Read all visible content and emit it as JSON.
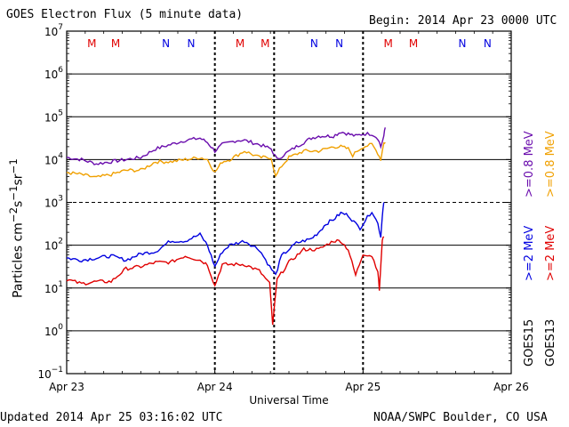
{
  "header": {
    "title": "GOES Electron Flux (5 minute data)",
    "begin": "Begin: 2014 Apr 23 0000 UTC"
  },
  "footer": {
    "updated": "Updated 2014 Apr 25 03:16:02 UTC",
    "credit": "NOAA/SWPC Boulder, CO USA"
  },
  "legend": {
    "goes15_08": ">=0.8 MeV",
    "goes13_08": ">=0.8 MeV",
    "goes15_2": ">=2 MeV",
    "goes13_2": ">=2 MeV",
    "sat15": "GOES15",
    "sat13": "GOES13",
    "mev": "MeV"
  },
  "colors": {
    "goes15_08": "#6a0dad",
    "goes13_08": "#f0a000",
    "goes15_2": "#0000e0",
    "goes13_2": "#e00000",
    "mark_M": "#e00000",
    "mark_N": "#0000e0"
  },
  "chart_data": {
    "type": "line",
    "title": "GOES Electron Flux (5 minute data)",
    "xlabel": "Universal Time",
    "ylabel": "Particles cm-2 s-1 sr-1",
    "y_scale": "log",
    "ylim_exp": [
      -1,
      7
    ],
    "y_tick_exponents": [
      7,
      6,
      5,
      4,
      3,
      2,
      1,
      0,
      -1
    ],
    "y_tick_base": "10",
    "threshold_exponent": 3,
    "xlim_days": [
      0,
      3
    ],
    "x_ticks": [
      {
        "day": 0,
        "label": "Apr 23"
      },
      {
        "day": 1,
        "label": "Apr 24"
      },
      {
        "day": 2,
        "label": "Apr 25"
      },
      {
        "day": 3,
        "label": "Apr 26"
      }
    ],
    "midnight_markers_days": [
      1,
      1.4,
      2
    ],
    "mn_markers": [
      {
        "day": 0.17,
        "label": "M",
        "sat": "13"
      },
      {
        "day": 0.33,
        "label": "M",
        "sat": "15"
      },
      {
        "day": 0.67,
        "label": "N",
        "sat": "13"
      },
      {
        "day": 0.84,
        "label": "N",
        "sat": "15"
      },
      {
        "day": 1.17,
        "label": "M",
        "sat": "13"
      },
      {
        "day": 1.34,
        "label": "M",
        "sat": "15"
      },
      {
        "day": 1.67,
        "label": "N",
        "sat": "13"
      },
      {
        "day": 1.84,
        "label": "N",
        "sat": "15"
      },
      {
        "day": 2.17,
        "label": "M",
        "sat": "13"
      },
      {
        "day": 2.34,
        "label": "M",
        "sat": "15"
      },
      {
        "day": 2.67,
        "label": "N",
        "sat": "13"
      },
      {
        "day": 2.84,
        "label": "N",
        "sat": "15"
      }
    ],
    "series": [
      {
        "name": "GOES15 >=0.8 MeV",
        "color_key": "goes15_08",
        "points": [
          [
            0,
            4.05
          ],
          [
            0.1,
            4.0
          ],
          [
            0.2,
            3.9
          ],
          [
            0.3,
            3.95
          ],
          [
            0.4,
            4.0
          ],
          [
            0.5,
            4.05
          ],
          [
            0.6,
            4.25
          ],
          [
            0.7,
            4.35
          ],
          [
            0.8,
            4.45
          ],
          [
            0.9,
            4.5
          ],
          [
            0.95,
            4.4
          ],
          [
            1.0,
            4.2
          ],
          [
            1.05,
            4.35
          ],
          [
            1.15,
            4.45
          ],
          [
            1.2,
            4.45
          ],
          [
            1.3,
            4.35
          ],
          [
            1.38,
            4.25
          ],
          [
            1.42,
            4.0
          ],
          [
            1.48,
            4.15
          ],
          [
            1.55,
            4.3
          ],
          [
            1.6,
            4.4
          ],
          [
            1.65,
            4.5
          ],
          [
            1.7,
            4.55
          ],
          [
            1.75,
            4.55
          ],
          [
            1.8,
            4.55
          ],
          [
            1.85,
            4.65
          ],
          [
            1.9,
            4.6
          ],
          [
            1.95,
            4.55
          ],
          [
            2.0,
            4.6
          ],
          [
            2.06,
            4.6
          ],
          [
            2.1,
            4.5
          ],
          [
            2.12,
            4.3
          ],
          [
            2.14,
            4.55
          ],
          [
            2.15,
            4.75
          ]
        ]
      },
      {
        "name": "GOES13 >=0.8 MeV",
        "color_key": "goes13_08",
        "points": [
          [
            0,
            3.7
          ],
          [
            0.1,
            3.65
          ],
          [
            0.2,
            3.58
          ],
          [
            0.3,
            3.65
          ],
          [
            0.4,
            3.75
          ],
          [
            0.5,
            3.75
          ],
          [
            0.6,
            3.95
          ],
          [
            0.7,
            3.95
          ],
          [
            0.8,
            4.0
          ],
          [
            0.9,
            4.05
          ],
          [
            0.95,
            4.0
          ],
          [
            1.0,
            3.7
          ],
          [
            1.05,
            3.95
          ],
          [
            1.1,
            4.0
          ],
          [
            1.2,
            4.2
          ],
          [
            1.3,
            4.05
          ],
          [
            1.38,
            4.05
          ],
          [
            1.41,
            3.6
          ],
          [
            1.45,
            3.85
          ],
          [
            1.5,
            4.05
          ],
          [
            1.6,
            4.2
          ],
          [
            1.7,
            4.2
          ],
          [
            1.8,
            4.3
          ],
          [
            1.85,
            4.3
          ],
          [
            1.9,
            4.25
          ],
          [
            1.93,
            4.1
          ],
          [
            1.96,
            4.2
          ],
          [
            2.0,
            4.3
          ],
          [
            2.06,
            4.35
          ],
          [
            2.1,
            4.15
          ],
          [
            2.12,
            4.0
          ],
          [
            2.14,
            4.4
          ],
          [
            2.15,
            4.4
          ]
        ]
      },
      {
        "name": "GOES15 >=2 MeV",
        "color_key": "goes15_2",
        "points": [
          [
            0,
            1.7
          ],
          [
            0.1,
            1.65
          ],
          [
            0.2,
            1.7
          ],
          [
            0.3,
            1.75
          ],
          [
            0.4,
            1.65
          ],
          [
            0.5,
            1.8
          ],
          [
            0.6,
            1.85
          ],
          [
            0.7,
            2.1
          ],
          [
            0.8,
            2.1
          ],
          [
            0.9,
            2.25
          ],
          [
            0.95,
            2.0
          ],
          [
            1.0,
            1.5
          ],
          [
            1.05,
            1.85
          ],
          [
            1.1,
            2.0
          ],
          [
            1.2,
            2.1
          ],
          [
            1.3,
            1.9
          ],
          [
            1.37,
            1.5
          ],
          [
            1.41,
            1.3
          ],
          [
            1.45,
            1.75
          ],
          [
            1.55,
            2.05
          ],
          [
            1.65,
            2.15
          ],
          [
            1.7,
            2.3
          ],
          [
            1.75,
            2.5
          ],
          [
            1.8,
            2.6
          ],
          [
            1.85,
            2.75
          ],
          [
            1.9,
            2.7
          ],
          [
            1.95,
            2.5
          ],
          [
            1.98,
            2.4
          ],
          [
            2.0,
            2.5
          ],
          [
            2.06,
            2.8
          ],
          [
            2.1,
            2.5
          ],
          [
            2.12,
            2.2
          ],
          [
            2.13,
            2.7
          ],
          [
            2.14,
            3.0
          ]
        ]
      },
      {
        "name": "GOES13 >=2 MeV",
        "color_key": "goes13_2",
        "points": [
          [
            0,
            1.2
          ],
          [
            0.1,
            1.1
          ],
          [
            0.2,
            1.15
          ],
          [
            0.3,
            1.15
          ],
          [
            0.4,
            1.45
          ],
          [
            0.5,
            1.5
          ],
          [
            0.6,
            1.6
          ],
          [
            0.7,
            1.6
          ],
          [
            0.8,
            1.75
          ],
          [
            0.9,
            1.65
          ],
          [
            0.95,
            1.55
          ],
          [
            1.0,
            1.05
          ],
          [
            1.05,
            1.55
          ],
          [
            1.1,
            1.55
          ],
          [
            1.2,
            1.55
          ],
          [
            1.3,
            1.4
          ],
          [
            1.37,
            1.1
          ],
          [
            1.39,
            0.15
          ],
          [
            1.42,
            1.2
          ],
          [
            1.5,
            1.6
          ],
          [
            1.6,
            1.9
          ],
          [
            1.7,
            1.9
          ],
          [
            1.8,
            2.1
          ],
          [
            1.85,
            2.1
          ],
          [
            1.9,
            1.9
          ],
          [
            1.95,
            1.3
          ],
          [
            2.0,
            1.8
          ],
          [
            2.06,
            1.75
          ],
          [
            2.1,
            1.4
          ],
          [
            2.11,
            0.95
          ],
          [
            2.13,
            2.1
          ],
          [
            2.14,
            2.2
          ]
        ]
      }
    ]
  }
}
